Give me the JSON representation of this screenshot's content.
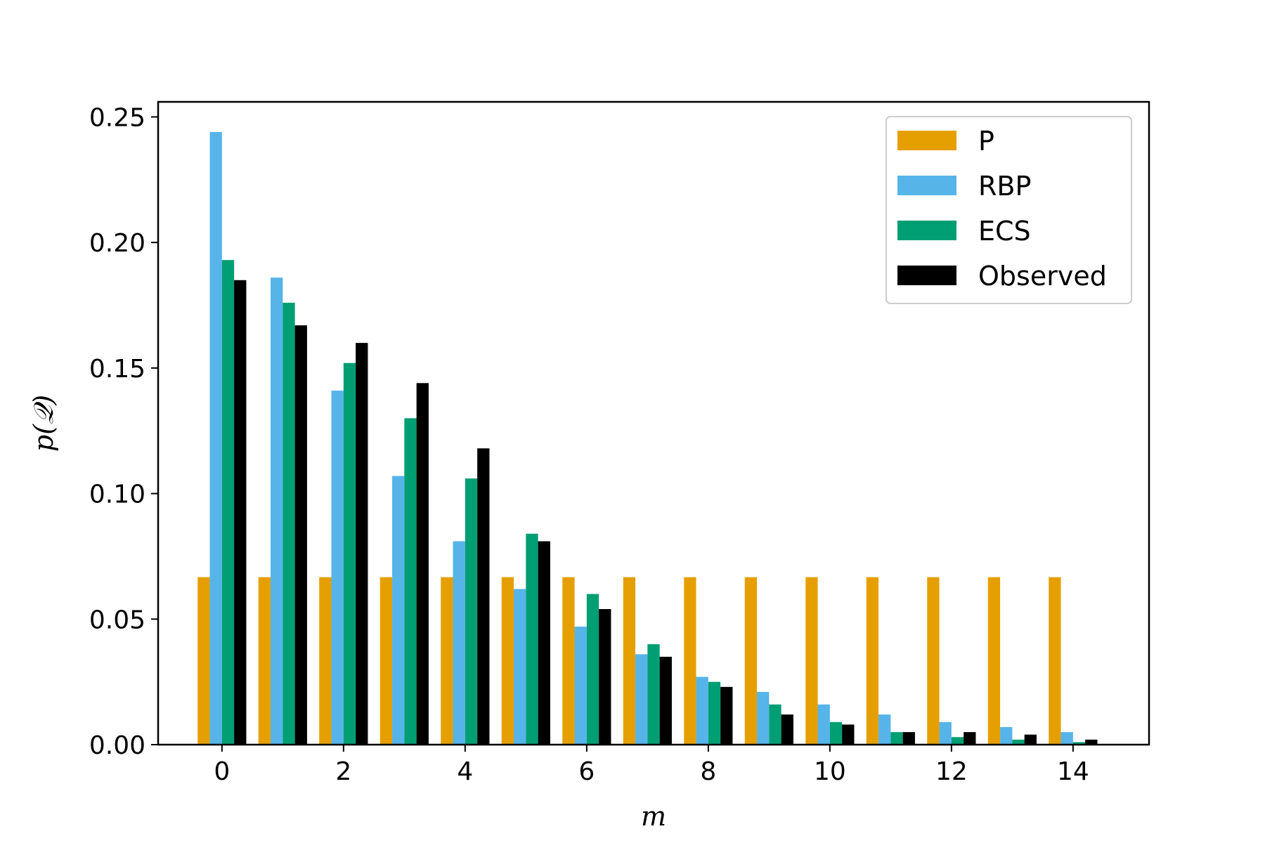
{
  "chart_data": {
    "type": "bar",
    "xlabel": "m",
    "ylabel": "p(𝒬)",
    "xlim": [
      -1.05,
      15.25
    ],
    "ylim": [
      0,
      0.256
    ],
    "x_ticks": [
      0,
      2,
      4,
      6,
      8,
      10,
      12,
      14
    ],
    "y_ticks": [
      0.0,
      0.05,
      0.1,
      0.15,
      0.2,
      0.25
    ],
    "y_tick_labels": [
      "0.00",
      "0.05",
      "0.10",
      "0.15",
      "0.20",
      "0.25"
    ],
    "categories": [
      0,
      1,
      2,
      3,
      4,
      5,
      6,
      7,
      8,
      9,
      10,
      11,
      12,
      13,
      14
    ],
    "legend_position": "top-right",
    "grid": false,
    "series": [
      {
        "name": "P",
        "color": "#E69F00",
        "values": [
          0.0667,
          0.0667,
          0.0667,
          0.0667,
          0.0667,
          0.0667,
          0.0667,
          0.0667,
          0.0667,
          0.0667,
          0.0667,
          0.0667,
          0.0667,
          0.0667,
          0.0667
        ]
      },
      {
        "name": "RBP",
        "color": "#56B4E9",
        "values": [
          0.244,
          0.186,
          0.141,
          0.107,
          0.081,
          0.062,
          0.047,
          0.036,
          0.027,
          0.021,
          0.016,
          0.012,
          0.009,
          0.007,
          0.005
        ]
      },
      {
        "name": "ECS",
        "color": "#009E73",
        "values": [
          0.193,
          0.176,
          0.152,
          0.13,
          0.106,
          0.084,
          0.06,
          0.04,
          0.025,
          0.016,
          0.009,
          0.005,
          0.003,
          0.002,
          0.001
        ]
      },
      {
        "name": "Observed",
        "color": "#000000",
        "values": [
          0.185,
          0.167,
          0.16,
          0.144,
          0.118,
          0.081,
          0.054,
          0.035,
          0.023,
          0.012,
          0.008,
          0.005,
          0.005,
          0.004,
          0.002
        ]
      }
    ]
  }
}
